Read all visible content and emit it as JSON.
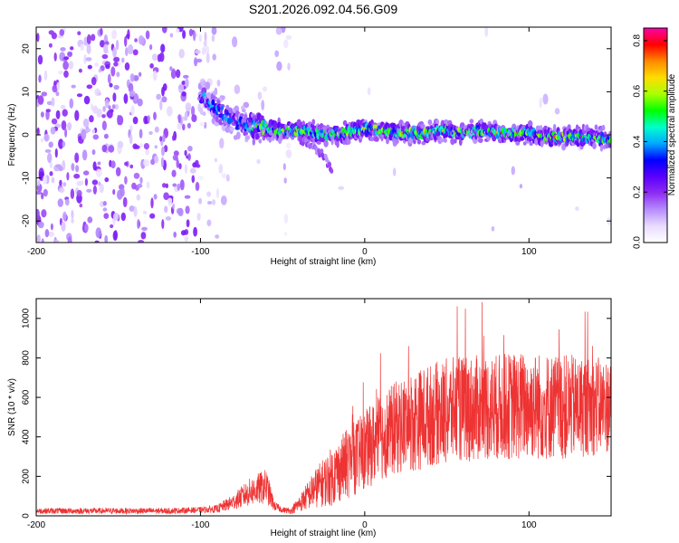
{
  "figure_title": "S201.2026.092.04.56.G09",
  "colors": {
    "trace": "#ee3333",
    "axis": "#000000",
    "background": "#ffffff"
  },
  "chart_data": [
    {
      "type": "heatmap",
      "xlabel": "Height of straight line (km)",
      "ylabel": "Frequency (Hz)",
      "xlim": [
        -200,
        150
      ],
      "ylim": [
        -25,
        25
      ],
      "xticks": [
        -200,
        -100,
        0,
        100
      ],
      "yticks": [
        -20,
        -10,
        0,
        10,
        20
      ],
      "colorbar": {
        "label": "Normalized spectral amplitude",
        "range": [
          0.0,
          0.85
        ],
        "ticks": [
          "0.0",
          "0.2",
          "0.4",
          "0.6",
          "0.8"
        ],
        "colormap": [
          "#ffffff",
          "#e9dcff",
          "#b58cff",
          "#8e2cf2",
          "#5a00ff",
          "#0000ff",
          "#00aaff",
          "#00ffcc",
          "#00ff00",
          "#aaff00",
          "#ffdd00",
          "#ff8800",
          "#ff0000",
          "#ff00aa"
        ]
      },
      "ridge": {
        "description": "Doppler signal line",
        "x": [
          -100,
          -90,
          -80,
          -70,
          -60,
          -50,
          -40,
          -30,
          -20,
          -10,
          0,
          10,
          20,
          30,
          40,
          50,
          60,
          70,
          80,
          90,
          100,
          110,
          120,
          130,
          140,
          150
        ],
        "y": [
          9,
          6,
          3,
          2,
          1.5,
          1,
          1,
          0.5,
          0,
          0.5,
          1.5,
          1,
          0.5,
          0.5,
          0.5,
          1,
          0.5,
          1,
          0.5,
          0.5,
          0.5,
          -0.5,
          -0.5,
          -0.5,
          -0.5,
          -1
        ]
      },
      "side_feature": {
        "x": [
          -40,
          -35,
          -30,
          -25,
          -20
        ],
        "y": [
          -1,
          -2,
          -3,
          -5,
          -8
        ]
      }
    },
    {
      "type": "line",
      "xlabel": "Height of straight line (km)",
      "ylabel": "SNR (10 * v/v)",
      "xlim": [
        -200,
        150
      ],
      "ylim": [
        0,
        1100
      ],
      "xticks": [
        -200,
        -100,
        0,
        100
      ],
      "yticks": [
        0,
        200,
        400,
        600,
        800,
        1000
      ],
      "envelope": {
        "x": [
          -200,
          -120,
          -100,
          -90,
          -80,
          -70,
          -60,
          -55,
          -50,
          -45,
          -40,
          -30,
          -20,
          -10,
          0,
          10,
          20,
          30,
          40,
          50,
          60,
          80,
          100,
          120,
          140,
          150
        ],
        "mean": [
          25,
          25,
          30,
          35,
          70,
          120,
          150,
          50,
          30,
          25,
          60,
          140,
          200,
          270,
          330,
          400,
          450,
          480,
          510,
          530,
          540,
          550,
          560,
          550,
          555,
          560
        ],
        "spread": [
          15,
          15,
          15,
          20,
          40,
          70,
          90,
          25,
          15,
          15,
          40,
          100,
          150,
          180,
          200,
          220,
          240,
          260,
          260,
          270,
          270,
          270,
          280,
          270,
          250,
          240
        ]
      }
    }
  ]
}
